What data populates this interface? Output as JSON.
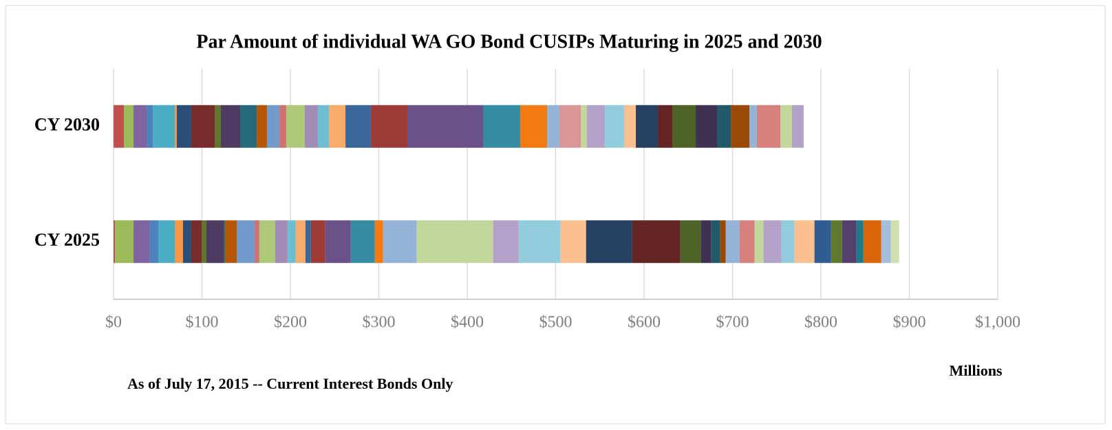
{
  "chart_data": {
    "type": "stacked-bar-horizontal",
    "title": "Par Amount of individual WA GO Bond CUSIPs Maturing in 2025 and 2030",
    "categories": [
      "CY 2030",
      "CY 2025"
    ],
    "stacks": [
      {
        "values": [
          11.7,
          10.9,
          14.8,
          7.0,
          24.9,
          2.3,
          16.3,
          26.5,
          7.0,
          21.8,
          18.7,
          11.6,
          14.0,
          7.8,
          21.0,
          14.8,
          12.5,
          18.7,
          28.8,
          41.2,
          85.6,
          42.0,
          30.4,
          14.0,
          24.1,
          7.0,
          20.2,
          21.8,
          13.3,
          24.9,
          16.3,
          26.5,
          24.1,
          15.6,
          21.0,
          8.5,
          26.5,
          13.2,
          13.2
        ],
        "colors": [
          "#c0504d",
          "#9bbb59",
          "#8064a2",
          "#4f81bd",
          "#4bacc6",
          "#f79646",
          "#2c4d75",
          "#772c2a",
          "#5f7530",
          "#4d3b62",
          "#276a7c",
          "#b65708",
          "#729aca",
          "#cd7371",
          "#afc97a",
          "#a08cb4",
          "#6fbdd1",
          "#f9ab6b",
          "#3a6799",
          "#9c3a38",
          "#6a5187",
          "#358ca2",
          "#f47a12",
          "#95b3d7",
          "#d99694",
          "#c3d69b",
          "#b2a2c7",
          "#93cddd",
          "#fac090",
          "#254061",
          "#632523",
          "#4f6228",
          "#3f3151",
          "#215968",
          "#984807",
          "#95b3d7",
          "#d7807d",
          "#c3d69b",
          "#b2a2c7"
        ]
      },
      {
        "values": [
          1.6,
          21.0,
          17.9,
          10.1,
          18.7,
          9.3,
          9.3,
          11.7,
          5.4,
          19.5,
          1.6,
          13.2,
          20.2,
          5.4,
          17.9,
          14.0,
          9.3,
          10.9,
          6.2,
          16.3,
          28.8,
          27.2,
          9.3,
          38.1,
          86.4,
          28.8,
          47.5,
          28.8,
          52.1,
          54.5,
          23.3,
          11.7,
          10.1,
          6.2,
          15.6,
          17.1,
          10.1,
          20.2,
          14.8,
          22.6,
          18.7,
          12.5,
          16.3,
          7.8,
          20.2,
          10.9,
          9.3
        ],
        "colors": [
          "#c0504d",
          "#9bbb59",
          "#8064a2",
          "#4f81bd",
          "#4bacc6",
          "#f79646",
          "#2c4d75",
          "#772c2a",
          "#5f7530",
          "#4d3b62",
          "#276a7c",
          "#b65708",
          "#729aca",
          "#cd7371",
          "#afc97a",
          "#a08cb4",
          "#6fbdd1",
          "#f9ab6b",
          "#3a6799",
          "#9c3a38",
          "#6a5187",
          "#358ca2",
          "#f47a12",
          "#95b3d7",
          "#c3d69b",
          "#b2a2c7",
          "#93cddd",
          "#fac090",
          "#254061",
          "#632523",
          "#4f6228",
          "#3f3151",
          "#215968",
          "#984807",
          "#95b3d7",
          "#d7807d",
          "#c3d69b",
          "#b2a2c7",
          "#93cddd",
          "#fac090",
          "#2f5c91",
          "#5d7a2e",
          "#54406d",
          "#1f7a8c",
          "#d9650b",
          "#a6bedd",
          "#cfdfae"
        ]
      }
    ],
    "xlim": [
      0,
      1000
    ],
    "xticks": [
      {
        "value": 0,
        "label": "$0"
      },
      {
        "value": 100,
        "label": "$100"
      },
      {
        "value": 200,
        "label": "$200"
      },
      {
        "value": 300,
        "label": "$300"
      },
      {
        "value": 400,
        "label": "$400"
      },
      {
        "value": 500,
        "label": "$500"
      },
      {
        "value": 600,
        "label": "$600"
      },
      {
        "value": 700,
        "label": "$700"
      },
      {
        "value": 800,
        "label": "$800"
      },
      {
        "value": 900,
        "label": "$900"
      },
      {
        "value": 1000,
        "label": "$1,000"
      }
    ],
    "xlabel": "Millions",
    "annotation": "As of July 17, 2015 -- Current Interest Bonds Only",
    "grid": true
  }
}
